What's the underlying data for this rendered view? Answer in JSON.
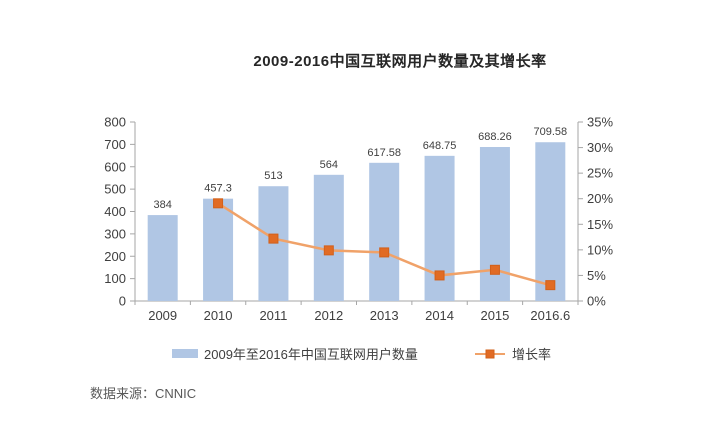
{
  "source": {
    "label": "数据来源：CNNIC"
  },
  "colors": {
    "bar_fill": "#b0c6e4",
    "line_stroke": "#f0a269",
    "marker_fill": "#e16b24",
    "marker_border": "#d2601a",
    "axis_line": "#a6a6a6",
    "tick_text": "#3f3f3f",
    "data_label_text": "#404040"
  },
  "chart_data": {
    "type": "bar",
    "combo": true,
    "title": "2009-2016中国互联网用户数量及其增长率",
    "categories": [
      "2009",
      "2010",
      "2011",
      "2012",
      "2013",
      "2014",
      "2015",
      "2016.6"
    ],
    "series": [
      {
        "name": "2009年至2016年中国互联网用户数量",
        "type": "bar",
        "axis": "left",
        "values": [
          384,
          457.3,
          513,
          564,
          617.58,
          648.75,
          688.26,
          709.58
        ],
        "labels": [
          "384",
          "457.3",
          "513",
          "564",
          "617.58",
          "648.75",
          "688.26",
          "709.58"
        ]
      },
      {
        "name": "增长率",
        "type": "line",
        "axis": "right",
        "values": [
          null,
          19.1,
          12.2,
          9.9,
          9.5,
          5.0,
          6.1,
          3.1
        ]
      }
    ],
    "left_axis": {
      "min": 0,
      "max": 800,
      "step": 100,
      "ticks": [
        "0",
        "100",
        "200",
        "300",
        "400",
        "500",
        "600",
        "700",
        "800"
      ]
    },
    "right_axis": {
      "min": 0,
      "max": 35,
      "step": 5,
      "ticks": [
        "0%",
        "5%",
        "10%",
        "15%",
        "20%",
        "25%",
        "30%",
        "35%"
      ]
    },
    "grid": false,
    "legend_position": "bottom",
    "xlabel": "",
    "ylabel": ""
  }
}
